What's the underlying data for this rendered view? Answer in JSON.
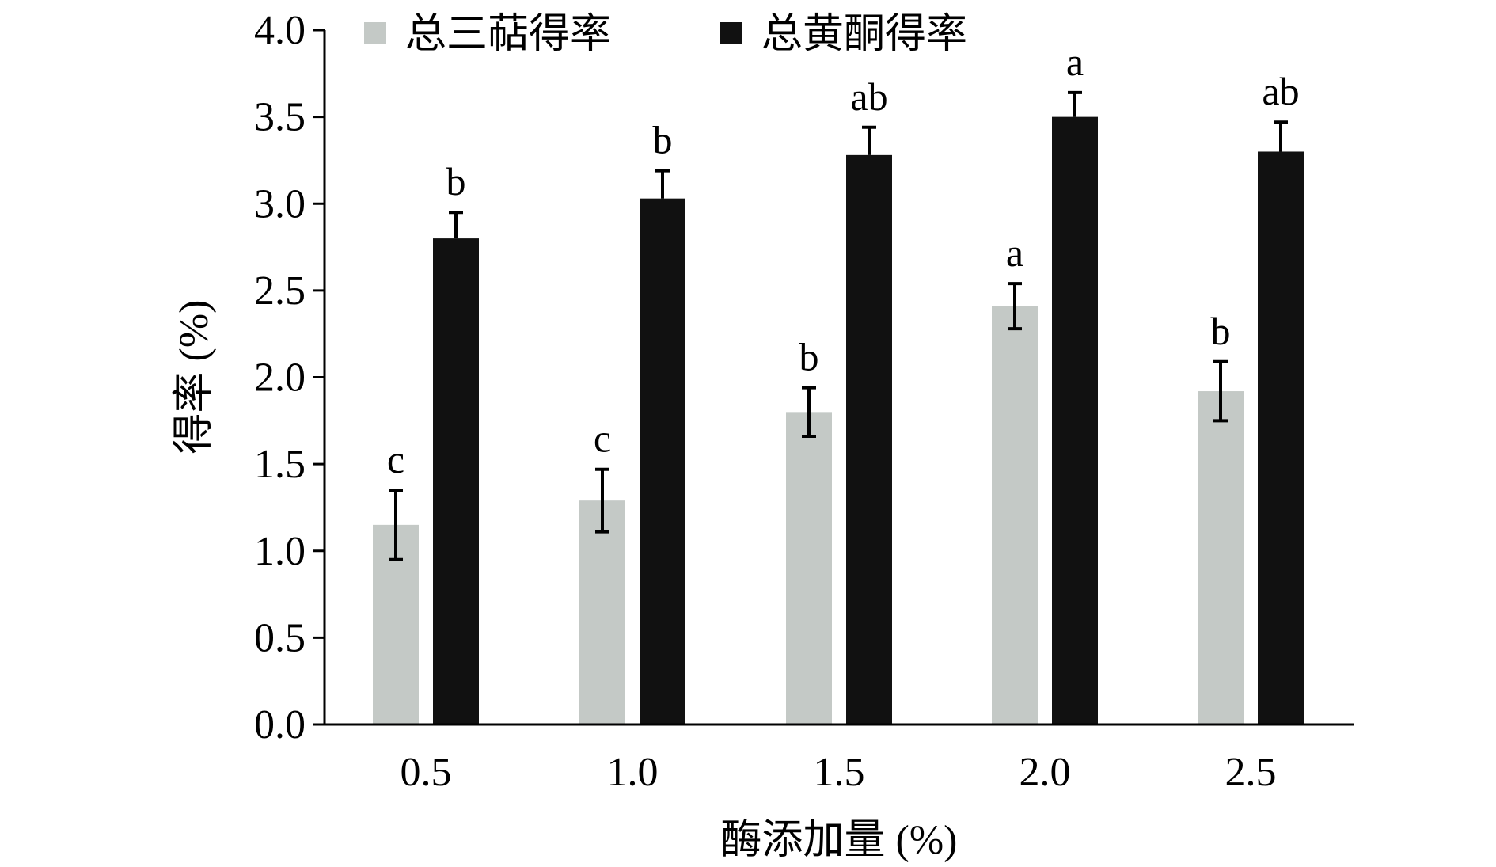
{
  "chart_data": {
    "type": "bar",
    "title": "",
    "xlabel": "酶添加量 (%)",
    "ylabel": "得率 (%)",
    "categories": [
      "0.5",
      "1.0",
      "1.5",
      "2.0",
      "2.5"
    ],
    "ylim": [
      0,
      4.0
    ],
    "yticks": [
      "0.0",
      "0.5",
      "1.0",
      "1.5",
      "2.0",
      "2.5",
      "3.0",
      "3.5",
      "4.0"
    ],
    "grid": false,
    "legend_position": "top",
    "series": [
      {
        "name": "总三萜得率",
        "color": "#c4c9c6",
        "values": [
          1.15,
          1.29,
          1.8,
          2.41,
          1.92
        ],
        "errors": [
          0.2,
          0.18,
          0.14,
          0.13,
          0.17
        ],
        "significance": [
          "c",
          "c",
          "b",
          "a",
          "b"
        ]
      },
      {
        "name": "总黄酮得率",
        "color": "#111111",
        "values": [
          2.8,
          3.03,
          3.28,
          3.5,
          3.3
        ],
        "errors": [
          0.15,
          0.16,
          0.16,
          0.14,
          0.17
        ],
        "significance": [
          "b",
          "b",
          "ab",
          "a",
          "ab"
        ]
      }
    ]
  }
}
